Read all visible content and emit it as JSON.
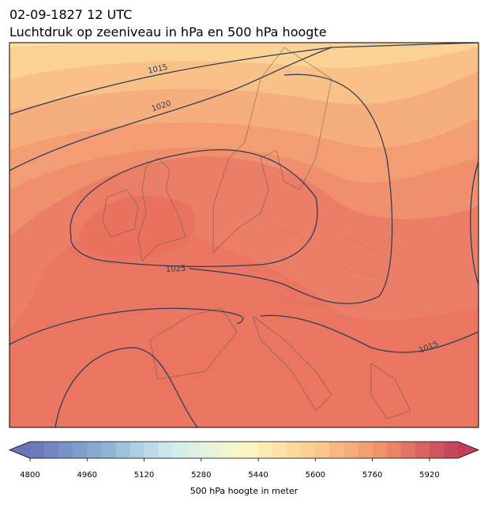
{
  "title": "02-09-1827 12 UTC",
  "subtitle": "Luchtdruk op zeeniveau in hPa en 500 hPa hoogte",
  "isobar_labels": [
    1015,
    1020,
    1025,
    1015
  ],
  "colorbar": {
    "label": "500 hPa hoogte in meter",
    "lim": [
      4800,
      6000
    ],
    "step": 40,
    "ticks": [
      4800,
      4960,
      5120,
      5280,
      5440,
      5600,
      5760,
      5920
    ],
    "colors": [
      "#6a74b6",
      "#88afd3",
      "#d2ecf2",
      "#fcf7c4",
      "#fbcb8c",
      "#f08c69",
      "#c23e59"
    ]
  }
}
